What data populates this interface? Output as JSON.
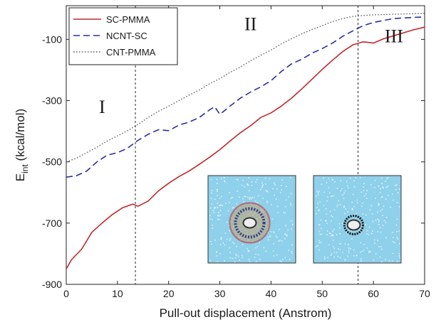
{
  "chart_data": {
    "type": "line",
    "xlabel": "Pull-out displacement (Anstrom)",
    "ylabel_main": "E",
    "ylabel_sub": "int",
    "ylabel_unit": " (kcal/mol)",
    "xlim": [
      0,
      70
    ],
    "ylim": [
      -900,
      10
    ],
    "xticks": [
      0,
      10,
      20,
      30,
      40,
      50,
      60,
      70
    ],
    "yticks": [
      -900,
      -700,
      -500,
      -300,
      -100
    ],
    "grid": false,
    "legend_position": "top-left",
    "vlines": [
      13.5,
      57
    ],
    "region_labels": [
      {
        "text": "I",
        "x": 7,
        "y": -340
      },
      {
        "text": "II",
        "x": 36,
        "y": -70
      },
      {
        "text": "III",
        "x": 64,
        "y": -110
      }
    ],
    "series": [
      {
        "name": "SC-PMMA",
        "color": "#c0282d",
        "style": "solid",
        "points": [
          [
            0,
            -850
          ],
          [
            1,
            -820
          ],
          [
            3,
            -785
          ],
          [
            5,
            -730
          ],
          [
            7,
            -700
          ],
          [
            9,
            -672
          ],
          [
            11,
            -650
          ],
          [
            13,
            -638
          ],
          [
            14,
            -645
          ],
          [
            16,
            -628
          ],
          [
            18,
            -595
          ],
          [
            20,
            -570
          ],
          [
            22,
            -548
          ],
          [
            24,
            -530
          ],
          [
            26,
            -508
          ],
          [
            28,
            -485
          ],
          [
            30,
            -460
          ],
          [
            32,
            -432
          ],
          [
            34,
            -405
          ],
          [
            36,
            -382
          ],
          [
            38,
            -355
          ],
          [
            40,
            -340
          ],
          [
            42,
            -318
          ],
          [
            44,
            -292
          ],
          [
            46,
            -262
          ],
          [
            48,
            -230
          ],
          [
            50,
            -198
          ],
          [
            52,
            -168
          ],
          [
            54,
            -140
          ],
          [
            56,
            -118
          ],
          [
            58,
            -108
          ],
          [
            60,
            -112
          ],
          [
            62,
            -98
          ],
          [
            64,
            -88
          ],
          [
            66,
            -78
          ],
          [
            68,
            -68
          ],
          [
            70,
            -60
          ]
        ]
      },
      {
        "name": "NCNT-SC",
        "color": "#2b2f9e",
        "style": "dashed",
        "points": [
          [
            0,
            -550
          ],
          [
            2,
            -545
          ],
          [
            4,
            -530
          ],
          [
            6,
            -500
          ],
          [
            8,
            -478
          ],
          [
            10,
            -470
          ],
          [
            12,
            -455
          ],
          [
            14,
            -430
          ],
          [
            16,
            -410
          ],
          [
            18,
            -395
          ],
          [
            20,
            -398
          ],
          [
            22,
            -380
          ],
          [
            24,
            -370
          ],
          [
            26,
            -355
          ],
          [
            28,
            -330
          ],
          [
            29,
            -320
          ],
          [
            30,
            -345
          ],
          [
            32,
            -318
          ],
          [
            34,
            -292
          ],
          [
            36,
            -272
          ],
          [
            38,
            -255
          ],
          [
            40,
            -235
          ],
          [
            42,
            -205
          ],
          [
            44,
            -180
          ],
          [
            46,
            -165
          ],
          [
            48,
            -145
          ],
          [
            50,
            -130
          ],
          [
            52,
            -112
          ],
          [
            54,
            -90
          ],
          [
            56,
            -72
          ],
          [
            58,
            -55
          ],
          [
            60,
            -45
          ],
          [
            62,
            -38
          ],
          [
            64,
            -32
          ],
          [
            66,
            -30
          ],
          [
            68,
            -28
          ],
          [
            70,
            -27
          ]
        ]
      },
      {
        "name": "CNT-PMMA",
        "color": "#555555",
        "style": "dotted",
        "points": [
          [
            0,
            -500
          ],
          [
            2,
            -488
          ],
          [
            4,
            -470
          ],
          [
            6,
            -452
          ],
          [
            8,
            -432
          ],
          [
            10,
            -415
          ],
          [
            12,
            -398
          ],
          [
            14,
            -378
          ],
          [
            16,
            -355
          ],
          [
            18,
            -335
          ],
          [
            20,
            -318
          ],
          [
            22,
            -300
          ],
          [
            24,
            -282
          ],
          [
            26,
            -265
          ],
          [
            28,
            -245
          ],
          [
            30,
            -228
          ],
          [
            32,
            -208
          ],
          [
            34,
            -190
          ],
          [
            36,
            -170
          ],
          [
            38,
            -152
          ],
          [
            40,
            -135
          ],
          [
            42,
            -115
          ],
          [
            44,
            -98
          ],
          [
            46,
            -82
          ],
          [
            48,
            -68
          ],
          [
            50,
            -55
          ],
          [
            52,
            -42
          ],
          [
            54,
            -32
          ],
          [
            56,
            -25
          ],
          [
            58,
            -22
          ],
          [
            60,
            -20
          ],
          [
            62,
            -19
          ],
          [
            64,
            -18
          ],
          [
            66,
            -17
          ],
          [
            68,
            -16
          ],
          [
            70,
            -15
          ]
        ]
      }
    ],
    "insets": [
      {
        "name": "inset-sc-pmma",
        "description_fill": "#8fd0ea",
        "ring_color": "#c0282d",
        "has_ring": true
      },
      {
        "name": "inset-cnt-pmma",
        "description_fill": "#8fd0ea",
        "ring_color": "#111111",
        "has_ring": false
      }
    ]
  }
}
